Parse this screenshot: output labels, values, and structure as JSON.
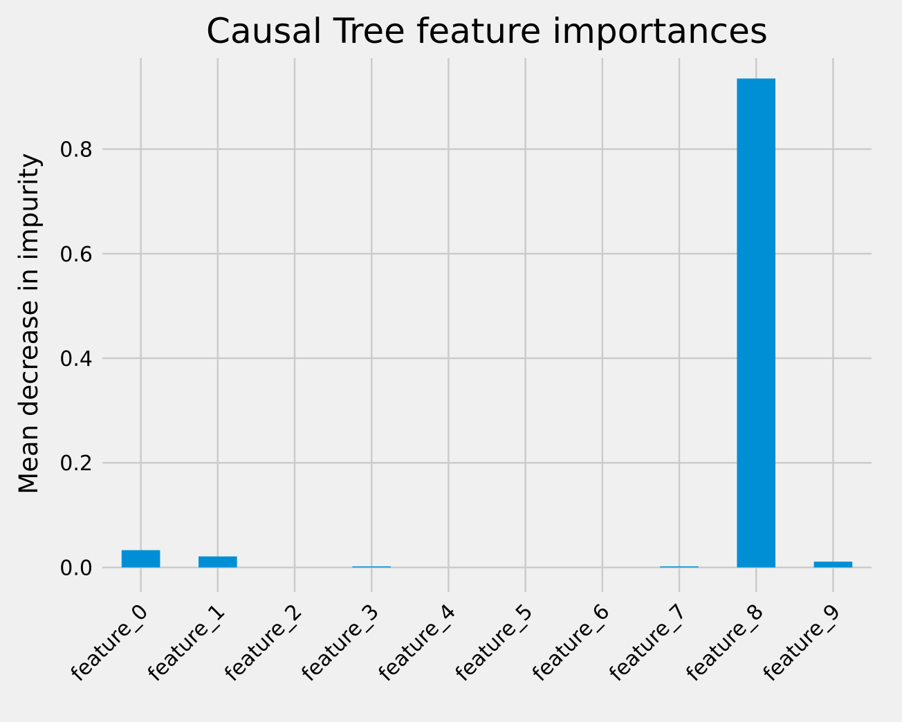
{
  "chart_data": {
    "type": "bar",
    "title": "Causal Tree feature importances",
    "ylabel": "Mean decrease in impurity",
    "categories": [
      "feature_0",
      "feature_1",
      "feature_2",
      "feature_3",
      "feature_4",
      "feature_5",
      "feature_6",
      "feature_7",
      "feature_8",
      "feature_9"
    ],
    "values": [
      0.033,
      0.021,
      0,
      0.002,
      0,
      0,
      0,
      0.002,
      0.935,
      0.011
    ],
    "color": "#008fd5",
    "ylim": [
      -0.047,
      0.982
    ],
    "yticks": [
      {
        "value": 0,
        "label": "0.0"
      },
      0.2,
      0.4,
      0.6,
      0.8
    ],
    "grid": true
  }
}
